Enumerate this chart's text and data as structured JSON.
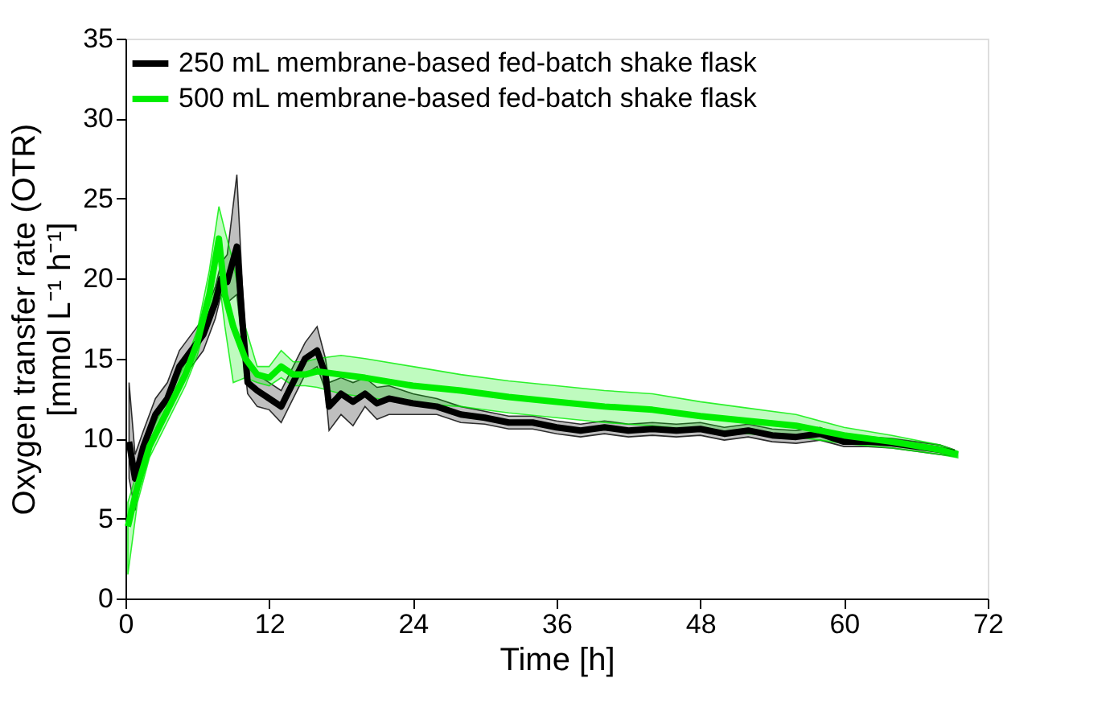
{
  "chart_data": {
    "type": "line",
    "xlabel": "Time   [h]",
    "ylabel": "Oxygen transfer rate (OTR)\n[mmol L⁻¹ h⁻¹]",
    "xlim": [
      0,
      72
    ],
    "xticks": [
      0,
      12,
      24,
      36,
      48,
      60,
      72
    ],
    "ylim": [
      0,
      35
    ],
    "yticks": [
      0,
      5,
      10,
      15,
      20,
      25,
      30,
      35
    ],
    "grid": false,
    "legend": "top left",
    "marker": "none",
    "line_style": "solid",
    "series": [
      {
        "name": "250 mL membrane-based fed-batch shake flask",
        "color": "#000000",
        "x": [
          0.3,
          0.8,
          1.5,
          2.5,
          3.5,
          4.5,
          5.5,
          6.5,
          7.5,
          8.0,
          8.5,
          9.3,
          9.8,
          10.2,
          11,
          12,
          13,
          14,
          15,
          16,
          16.7,
          17,
          18,
          19,
          20,
          21,
          22,
          24,
          26,
          28,
          30,
          32,
          34,
          36,
          38,
          40,
          42,
          44,
          46,
          48,
          50,
          52,
          54,
          56,
          58,
          60,
          62,
          64,
          66,
          68,
          69.2
        ],
        "values": [
          9.8,
          7.5,
          9.5,
          11.5,
          12.5,
          14.5,
          15.5,
          16.5,
          18.5,
          20,
          19.8,
          22,
          17,
          13.5,
          13,
          12.5,
          12,
          13.5,
          15,
          15.5,
          14,
          12,
          12.8,
          12.3,
          12.8,
          12.2,
          12.5,
          12.2,
          12,
          11.5,
          11.3,
          11,
          11,
          10.7,
          10.5,
          10.7,
          10.5,
          10.6,
          10.5,
          10.6,
          10.3,
          10.5,
          10.2,
          10.1,
          10.3,
          9.8,
          9.8,
          9.7,
          9.5,
          9.3,
          9.1
        ],
        "lower": [
          7.5,
          5.5,
          8.5,
          10.5,
          11.5,
          13.5,
          14.5,
          15.5,
          17.5,
          19,
          18.5,
          19,
          15.5,
          12.8,
          12,
          11.8,
          11,
          12.5,
          14,
          14.5,
          13,
          10.5,
          11.5,
          10.8,
          12,
          11.2,
          11.5,
          11.5,
          11.5,
          11,
          10.9,
          10.6,
          10.6,
          10.3,
          10.1,
          10.3,
          10.1,
          10.2,
          10.1,
          10.2,
          9.9,
          10.1,
          9.8,
          9.7,
          9.9,
          9.5,
          9.5,
          9.4,
          9.2,
          9.0,
          8.9
        ],
        "upper": [
          13.5,
          9,
          10.5,
          12.5,
          13.5,
          15.5,
          16.5,
          17.5,
          19.5,
          21,
          21.5,
          26.5,
          19,
          14.5,
          14,
          13.5,
          13,
          14.5,
          16,
          17,
          15,
          13.5,
          13.8,
          13.5,
          13.8,
          13.2,
          13.3,
          12.8,
          12.5,
          12,
          11.7,
          11.4,
          11.4,
          11.1,
          10.9,
          11.1,
          10.9,
          11,
          10.9,
          11,
          10.7,
          10.9,
          10.6,
          10.5,
          10.7,
          10.1,
          10.1,
          10,
          9.8,
          9.6,
          9.3
        ]
      },
      {
        "name": "500 mL membrane-based fed-batch shake flask",
        "color": "#00ee00",
        "x": [
          0.2,
          1,
          2,
          3,
          4,
          5,
          6,
          7,
          7.8,
          8.3,
          9,
          10,
          11,
          12,
          13,
          14,
          15,
          16,
          18,
          20,
          24,
          28,
          32,
          36,
          40,
          44,
          48,
          52,
          56,
          60,
          64,
          68,
          69.5
        ],
        "values": [
          4.5,
          7,
          9.5,
          11,
          12.5,
          14,
          16,
          19,
          22.5,
          19,
          17,
          15,
          14,
          13.8,
          14.5,
          14,
          14,
          14.2,
          14,
          13.8,
          13.3,
          13,
          12.6,
          12.3,
          12,
          11.8,
          11.4,
          11.1,
          10.8,
          10.2,
          9.8,
          9.3,
          9.0
        ],
        "lower": [
          1.5,
          6,
          8.8,
          10.3,
          11.8,
          13.3,
          15.2,
          18,
          20,
          17,
          13.5,
          13.8,
          13.5,
          13.3,
          13.8,
          13.3,
          13.3,
          13.2,
          12.8,
          12.6,
          12.2,
          12,
          11.6,
          11.3,
          11,
          10.8,
          10.5,
          10.3,
          10.1,
          9.7,
          9.4,
          9,
          8.8
        ],
        "upper": [
          6,
          8,
          10.2,
          11.7,
          13.2,
          14.7,
          16.8,
          20.5,
          24.5,
          23,
          21,
          17,
          14.5,
          14.5,
          15.5,
          14.8,
          14.8,
          15,
          15.2,
          15,
          14.5,
          14,
          13.6,
          13.3,
          13,
          12.8,
          12.3,
          11.9,
          11.5,
          10.7,
          10.2,
          9.6,
          9.2
        ]
      }
    ]
  }
}
